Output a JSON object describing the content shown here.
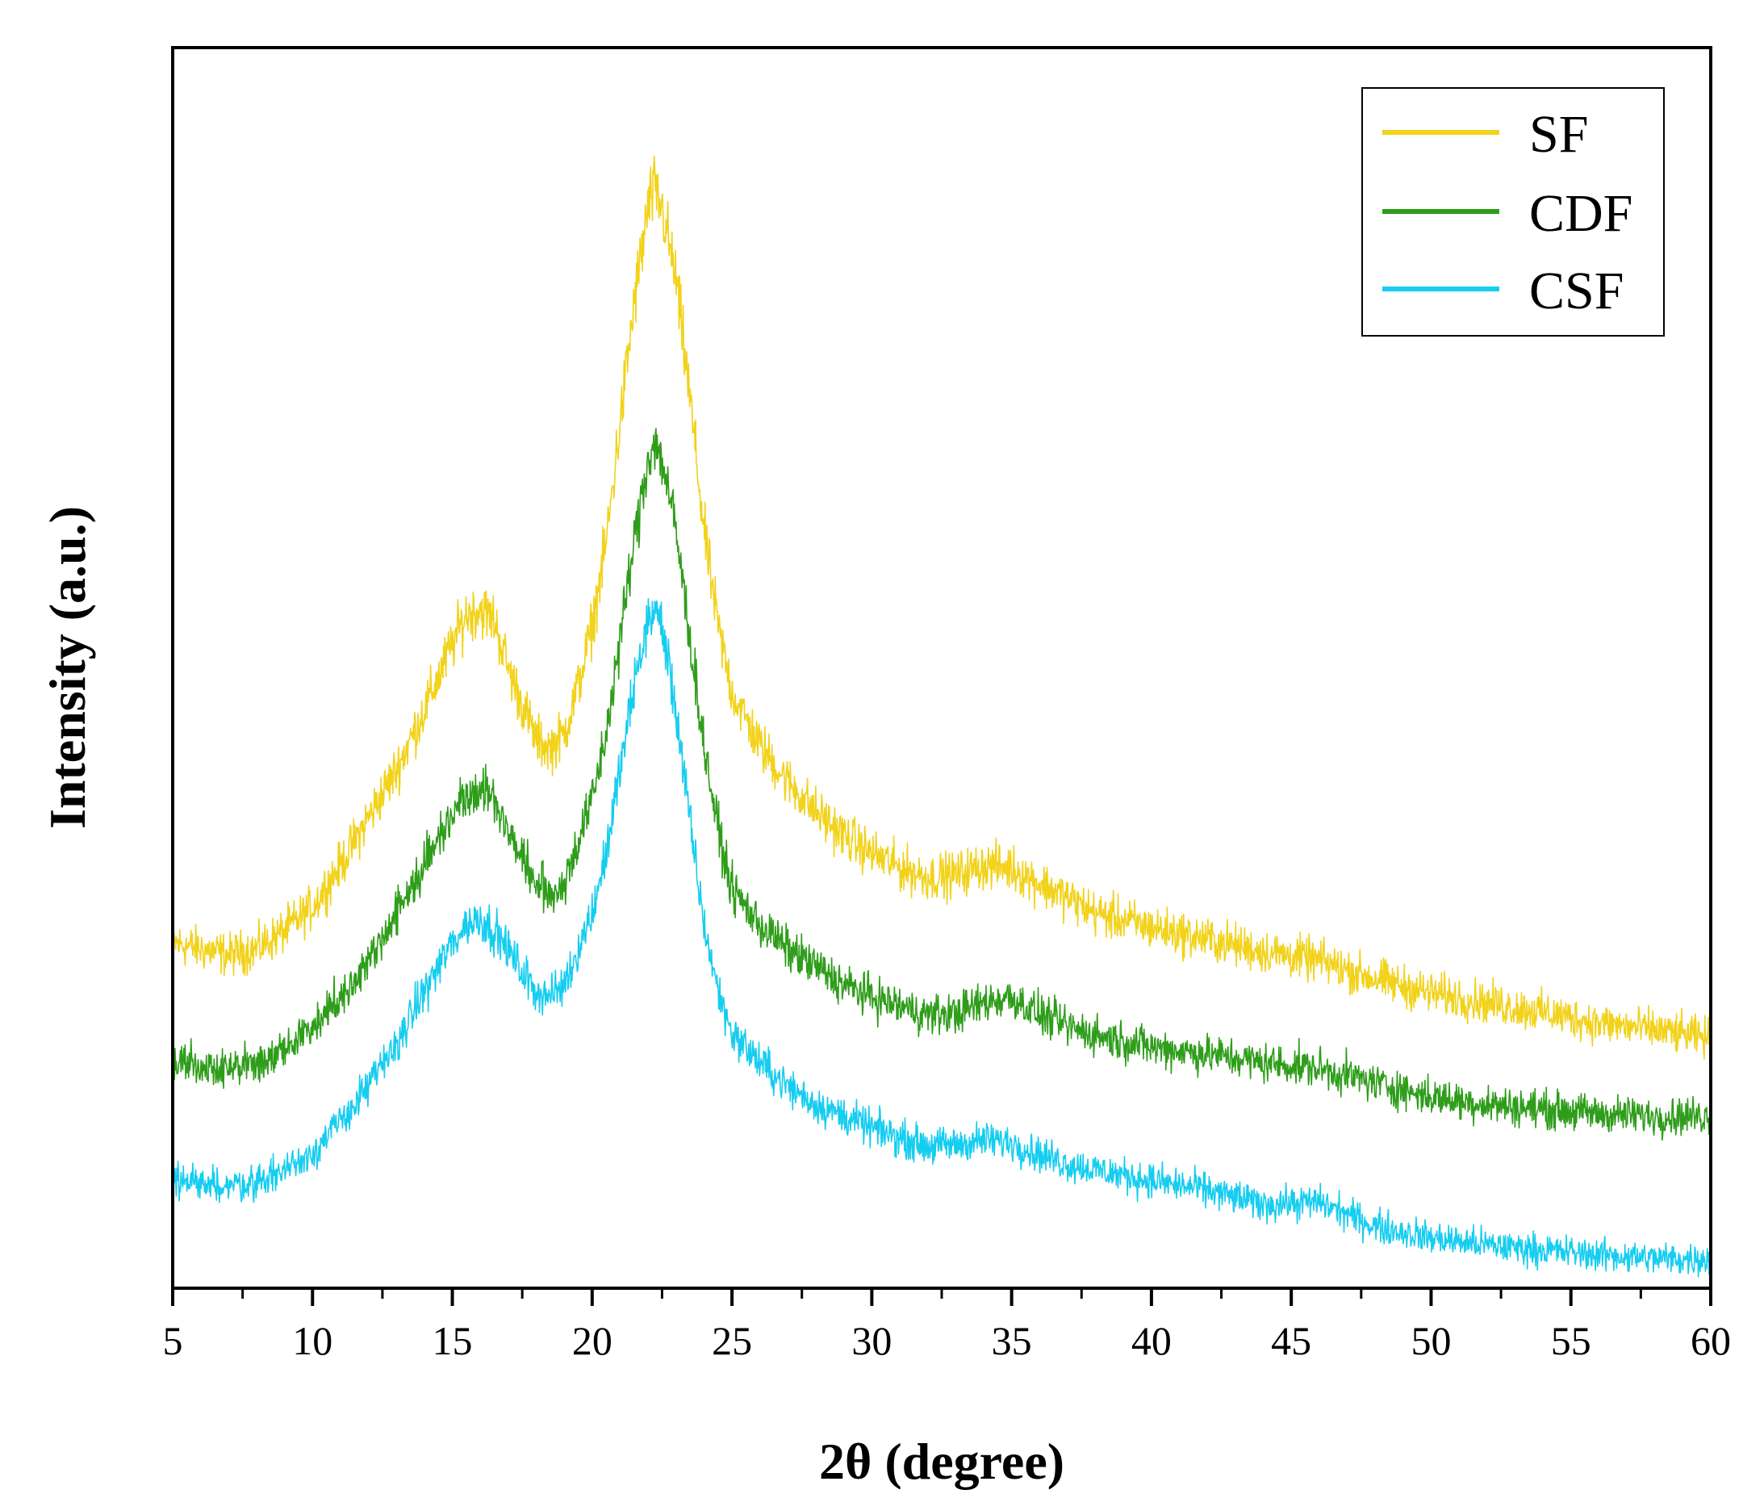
{
  "chart_data": {
    "type": "line",
    "title": "",
    "xlabel": "2θ (degree)",
    "ylabel": "Intensity (a.u.)",
    "xlim": [
      5,
      60
    ],
    "ylim": [
      0,
      100
    ],
    "y_ticks_shown": false,
    "x_ticks": [
      "5",
      "10",
      "15",
      "20",
      "25",
      "30",
      "35",
      "40",
      "45",
      "50",
      "55",
      "60"
    ],
    "x_tick_values": [
      5,
      10,
      15,
      20,
      25,
      30,
      35,
      40,
      45,
      50,
      55,
      60
    ],
    "legend_position": "top-right",
    "noise_amplitude": 1.6,
    "series": [
      {
        "name": "SF",
        "color": "#f2d21a",
        "x": [
          5,
          6,
          7,
          8,
          9,
          10,
          11,
          12,
          13,
          14,
          15,
          15.5,
          16,
          16.5,
          17,
          17.5,
          18,
          18.5,
          19,
          19.5,
          20,
          20.5,
          21,
          21.5,
          22,
          22.2,
          22.5,
          23,
          23.5,
          24,
          24.5,
          25,
          26,
          27,
          28,
          29,
          30,
          31,
          32,
          33,
          34,
          35,
          36,
          37,
          38,
          40,
          42,
          44,
          46,
          48,
          50,
          52,
          54,
          56,
          58,
          60
        ],
        "values": [
          28.5,
          28.0,
          27.5,
          28.0,
          29.5,
          31.5,
          35.0,
          39.0,
          43.0,
          48.0,
          53.5,
          56.0,
          56.5,
          55.5,
          51.5,
          48.5,
          45.5,
          44.8,
          46.0,
          50.0,
          55.0,
          62.0,
          72.0,
          82.0,
          90.0,
          91.5,
          90.0,
          84.0,
          74.0,
          63.0,
          55.0,
          49.5,
          45.0,
          42.0,
          39.5,
          37.5,
          36.0,
          34.8,
          34.0,
          34.2,
          35.0,
          34.8,
          33.5,
          32.3,
          31.0,
          29.8,
          28.8,
          27.8,
          27.0,
          25.5,
          24.3,
          23.5,
          22.7,
          21.8,
          21.2,
          20.5
        ]
      },
      {
        "name": "CDF",
        "color": "#2e9d1a",
        "x": [
          5,
          6,
          7,
          8,
          9,
          10,
          11,
          12,
          13,
          14,
          15,
          15.5,
          16,
          16.5,
          17,
          17.5,
          18,
          18.5,
          19,
          19.5,
          20,
          20.5,
          21,
          21.5,
          22,
          22.2,
          22.5,
          23,
          23.5,
          24,
          24.5,
          25,
          26,
          27,
          28,
          29,
          30,
          31,
          32,
          33,
          34,
          35,
          36,
          37,
          38,
          40,
          42,
          44,
          46,
          48,
          50,
          52,
          54,
          56,
          58,
          60
        ],
        "values": [
          18.7,
          18.2,
          18.0,
          18.3,
          19.5,
          21.5,
          24.0,
          27.0,
          31.0,
          35.0,
          39.5,
          41.0,
          41.5,
          40.5,
          38.0,
          35.5,
          33.5,
          32.5,
          33.5,
          37.0,
          40.5,
          46.0,
          54.0,
          62.0,
          69.0,
          70.5,
          69.0,
          63.0,
          54.0,
          45.0,
          38.0,
          33.0,
          30.0,
          28.0,
          26.5,
          25.0,
          24.0,
          23.2,
          22.5,
          22.6,
          23.5,
          24.0,
          22.5,
          21.5,
          20.8,
          19.8,
          19.2,
          18.5,
          18.0,
          16.8,
          15.6,
          15.0,
          14.6,
          14.2,
          14.0,
          14.0
        ]
      },
      {
        "name": "CSF",
        "color": "#16cdf0",
        "x": [
          5,
          6,
          7,
          8,
          9,
          10,
          11,
          12,
          13,
          14,
          15,
          15.5,
          16,
          16.5,
          17,
          17.5,
          18,
          18.5,
          19,
          19.5,
          20,
          20.5,
          21,
          21.5,
          22,
          22.2,
          22.5,
          23,
          23.5,
          24,
          24.5,
          25,
          26,
          27,
          28,
          29,
          30,
          31,
          32,
          33,
          34,
          35,
          36,
          37,
          38,
          40,
          42,
          44,
          46,
          48,
          50,
          52,
          54,
          56,
          58,
          60
        ],
        "values": [
          8.5,
          8.5,
          8.2,
          8.5,
          9.5,
          11.0,
          13.5,
          16.5,
          20.0,
          24.5,
          28.5,
          30.0,
          30.5,
          29.5,
          28.0,
          26.0,
          24.5,
          24.0,
          25.0,
          28.0,
          31.0,
          36.0,
          43.0,
          50.0,
          55.5,
          56.5,
          55.0,
          48.0,
          38.5,
          30.0,
          24.5,
          21.0,
          18.5,
          16.5,
          15.0,
          14.0,
          13.0,
          12.2,
          11.5,
          11.6,
          12.0,
          11.8,
          10.8,
          10.0,
          9.5,
          8.6,
          7.8,
          6.6,
          6.8,
          4.8,
          3.8,
          3.2,
          2.8,
          2.4,
          2.1,
          2.0
        ]
      }
    ]
  }
}
